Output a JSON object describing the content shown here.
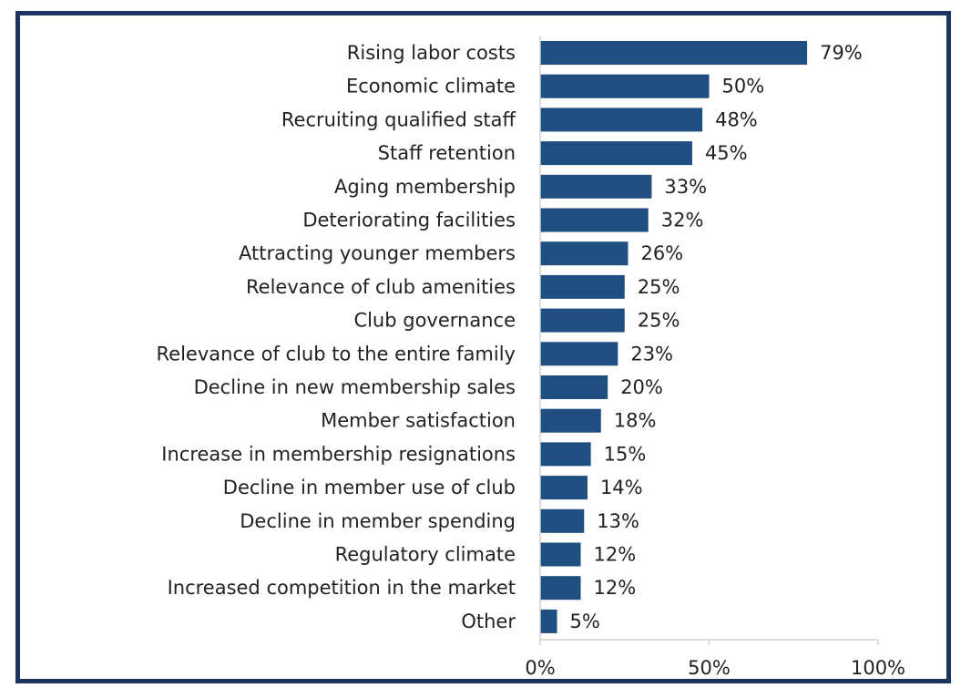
{
  "chart_data": {
    "type": "bar",
    "orientation": "horizontal",
    "categories": [
      "Rising labor costs",
      "Economic climate",
      "Recruiting qualified staff",
      "Staff retention",
      "Aging membership",
      "Deteriorating facilities",
      "Attracting younger members",
      "Relevance of club amenities",
      "Club governance",
      "Relevance of club to the entire family",
      "Decline in new membership sales",
      "Member satisfaction",
      "Increase in membership resignations",
      "Decline in member use of club",
      "Decline in member spending",
      "Regulatory climate",
      "Increased competition in the market",
      "Other"
    ],
    "values": [
      79,
      50,
      48,
      45,
      33,
      32,
      26,
      25,
      25,
      23,
      20,
      18,
      15,
      14,
      13,
      12,
      12,
      5
    ],
    "value_labels": [
      "79%",
      "50%",
      "48%",
      "45%",
      "33%",
      "32%",
      "26%",
      "25%",
      "25%",
      "23%",
      "20%",
      "18%",
      "15%",
      "14%",
      "13%",
      "12%",
      "12%",
      "5%"
    ],
    "xlim": [
      0,
      100
    ],
    "x_ticks": [
      0,
      50,
      100
    ],
    "x_tick_labels": [
      "0%",
      "50%",
      "100%"
    ],
    "title": "",
    "xlabel": "",
    "ylabel": "",
    "grid": false,
    "legend": "none",
    "bar_color": "#1f4e80",
    "frame_color": "#1b3560"
  }
}
